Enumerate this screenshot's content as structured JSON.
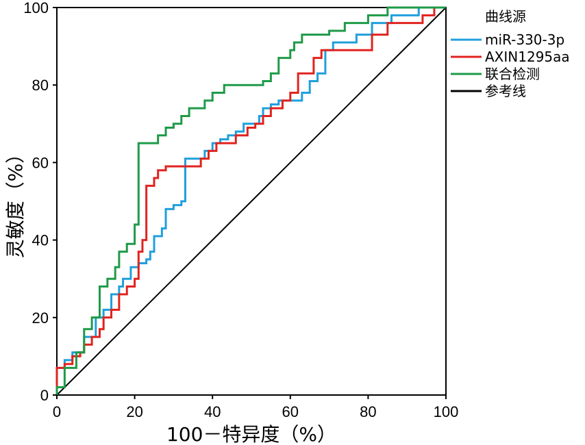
{
  "chart_data": {
    "type": "line",
    "xlabel": "100－特异度（%）",
    "ylabel": "灵敏度（%）",
    "xlim": [
      0,
      100
    ],
    "ylim": [
      0,
      100
    ],
    "xticks": [
      0,
      20,
      40,
      60,
      80,
      100
    ],
    "yticks": [
      0,
      20,
      40,
      60,
      80,
      100
    ],
    "grid": false,
    "legend": {
      "title": "曲线源",
      "position": "top-right-outside"
    },
    "series": [
      {
        "name": "miR-330-3p",
        "color": "#1f9fdc",
        "step": true,
        "points": [
          [
            0,
            0
          ],
          [
            0,
            7
          ],
          [
            2,
            7
          ],
          [
            2,
            9
          ],
          [
            4,
            9
          ],
          [
            4,
            11
          ],
          [
            7,
            11
          ],
          [
            7,
            15
          ],
          [
            10,
            15
          ],
          [
            10,
            20
          ],
          [
            12,
            20
          ],
          [
            12,
            22
          ],
          [
            14,
            22
          ],
          [
            14,
            26
          ],
          [
            16,
            26
          ],
          [
            16,
            28
          ],
          [
            17,
            28
          ],
          [
            17,
            30
          ],
          [
            19,
            30
          ],
          [
            19,
            33
          ],
          [
            21,
            33
          ],
          [
            21,
            34
          ],
          [
            23,
            34
          ],
          [
            23,
            35
          ],
          [
            24,
            35
          ],
          [
            24,
            37
          ],
          [
            25,
            37
          ],
          [
            25,
            41
          ],
          [
            27,
            41
          ],
          [
            27,
            43
          ],
          [
            28,
            43
          ],
          [
            28,
            48
          ],
          [
            30,
            48
          ],
          [
            30,
            49
          ],
          [
            32,
            49
          ],
          [
            32,
            50
          ],
          [
            33,
            50
          ],
          [
            33,
            61
          ],
          [
            38,
            61
          ],
          [
            38,
            63
          ],
          [
            40,
            63
          ],
          [
            40,
            65
          ],
          [
            42,
            65
          ],
          [
            42,
            66
          ],
          [
            44,
            66
          ],
          [
            44,
            67
          ],
          [
            46,
            67
          ],
          [
            46,
            68
          ],
          [
            48,
            68
          ],
          [
            48,
            70
          ],
          [
            52,
            70
          ],
          [
            52,
            72
          ],
          [
            53,
            72
          ],
          [
            53,
            74
          ],
          [
            55,
            74
          ],
          [
            55,
            75
          ],
          [
            57,
            75
          ],
          [
            57,
            76
          ],
          [
            63,
            76
          ],
          [
            63,
            78
          ],
          [
            65,
            78
          ],
          [
            65,
            81
          ],
          [
            67,
            81
          ],
          [
            67,
            83
          ],
          [
            69,
            83
          ],
          [
            69,
            89
          ],
          [
            71,
            89
          ],
          [
            71,
            91
          ],
          [
            77,
            91
          ],
          [
            77,
            93
          ],
          [
            81,
            93
          ],
          [
            81,
            96
          ],
          [
            86,
            96
          ],
          [
            86,
            98
          ],
          [
            93,
            98
          ],
          [
            93,
            100
          ],
          [
            100,
            100
          ]
        ]
      },
      {
        "name": "AXIN1295aa",
        "color": "#e0231f",
        "step": true,
        "points": [
          [
            0,
            0
          ],
          [
            0,
            7
          ],
          [
            2,
            7
          ],
          [
            2,
            8
          ],
          [
            4,
            8
          ],
          [
            4,
            10
          ],
          [
            6,
            10
          ],
          [
            6,
            11
          ],
          [
            7,
            11
          ],
          [
            7,
            13
          ],
          [
            9,
            13
          ],
          [
            9,
            15
          ],
          [
            11,
            15
          ],
          [
            11,
            17
          ],
          [
            12,
            17
          ],
          [
            12,
            20
          ],
          [
            14,
            20
          ],
          [
            14,
            22
          ],
          [
            16,
            22
          ],
          [
            16,
            26
          ],
          [
            18,
            26
          ],
          [
            18,
            28
          ],
          [
            20,
            28
          ],
          [
            20,
            30
          ],
          [
            21,
            30
          ],
          [
            21,
            37
          ],
          [
            22,
            37
          ],
          [
            22,
            40
          ],
          [
            23,
            40
          ],
          [
            23,
            54
          ],
          [
            25,
            54
          ],
          [
            25,
            56
          ],
          [
            26,
            56
          ],
          [
            26,
            58
          ],
          [
            28,
            58
          ],
          [
            28,
            59
          ],
          [
            37,
            59
          ],
          [
            37,
            61
          ],
          [
            39,
            61
          ],
          [
            39,
            63
          ],
          [
            41,
            63
          ],
          [
            41,
            65
          ],
          [
            46,
            65
          ],
          [
            46,
            67
          ],
          [
            49,
            67
          ],
          [
            49,
            69
          ],
          [
            51,
            69
          ],
          [
            51,
            70
          ],
          [
            53,
            70
          ],
          [
            53,
            72
          ],
          [
            55,
            72
          ],
          [
            55,
            74
          ],
          [
            58,
            74
          ],
          [
            58,
            76
          ],
          [
            60,
            76
          ],
          [
            60,
            78
          ],
          [
            62,
            78
          ],
          [
            62,
            83
          ],
          [
            66,
            83
          ],
          [
            66,
            87
          ],
          [
            68,
            87
          ],
          [
            68,
            89
          ],
          [
            81,
            89
          ],
          [
            81,
            93
          ],
          [
            85,
            93
          ],
          [
            85,
            96
          ],
          [
            94,
            96
          ],
          [
            94,
            98
          ],
          [
            97,
            98
          ],
          [
            97,
            100
          ],
          [
            100,
            100
          ]
        ]
      },
      {
        "name": "联合检测",
        "color": "#1e9a48",
        "step": true,
        "points": [
          [
            0,
            0
          ],
          [
            0,
            2
          ],
          [
            2,
            2
          ],
          [
            2,
            7
          ],
          [
            5,
            7
          ],
          [
            5,
            11
          ],
          [
            7,
            11
          ],
          [
            7,
            17
          ],
          [
            9,
            17
          ],
          [
            9,
            20
          ],
          [
            11,
            20
          ],
          [
            11,
            28
          ],
          [
            13,
            28
          ],
          [
            13,
            30
          ],
          [
            15,
            30
          ],
          [
            15,
            33
          ],
          [
            16,
            33
          ],
          [
            16,
            37
          ],
          [
            18,
            37
          ],
          [
            18,
            39
          ],
          [
            20,
            39
          ],
          [
            20,
            44
          ],
          [
            21,
            44
          ],
          [
            21,
            65
          ],
          [
            26,
            65
          ],
          [
            26,
            67
          ],
          [
            28,
            67
          ],
          [
            28,
            69
          ],
          [
            30,
            69
          ],
          [
            30,
            70
          ],
          [
            32,
            70
          ],
          [
            32,
            72
          ],
          [
            34,
            72
          ],
          [
            34,
            74
          ],
          [
            38,
            74
          ],
          [
            38,
            76
          ],
          [
            40,
            76
          ],
          [
            40,
            78
          ],
          [
            43,
            78
          ],
          [
            43,
            80
          ],
          [
            53,
            80
          ],
          [
            53,
            81
          ],
          [
            55,
            81
          ],
          [
            55,
            83
          ],
          [
            57,
            83
          ],
          [
            57,
            87
          ],
          [
            60,
            87
          ],
          [
            60,
            89
          ],
          [
            61,
            89
          ],
          [
            61,
            91
          ],
          [
            63,
            91
          ],
          [
            63,
            93
          ],
          [
            70,
            93
          ],
          [
            70,
            94
          ],
          [
            74,
            94
          ],
          [
            74,
            96
          ],
          [
            80,
            96
          ],
          [
            80,
            98
          ],
          [
            85,
            98
          ],
          [
            85,
            100
          ],
          [
            100,
            100
          ]
        ]
      },
      {
        "name": "参考线",
        "color": "#000000",
        "step": false,
        "points": [
          [
            0,
            0
          ],
          [
            100,
            100
          ]
        ]
      }
    ]
  }
}
